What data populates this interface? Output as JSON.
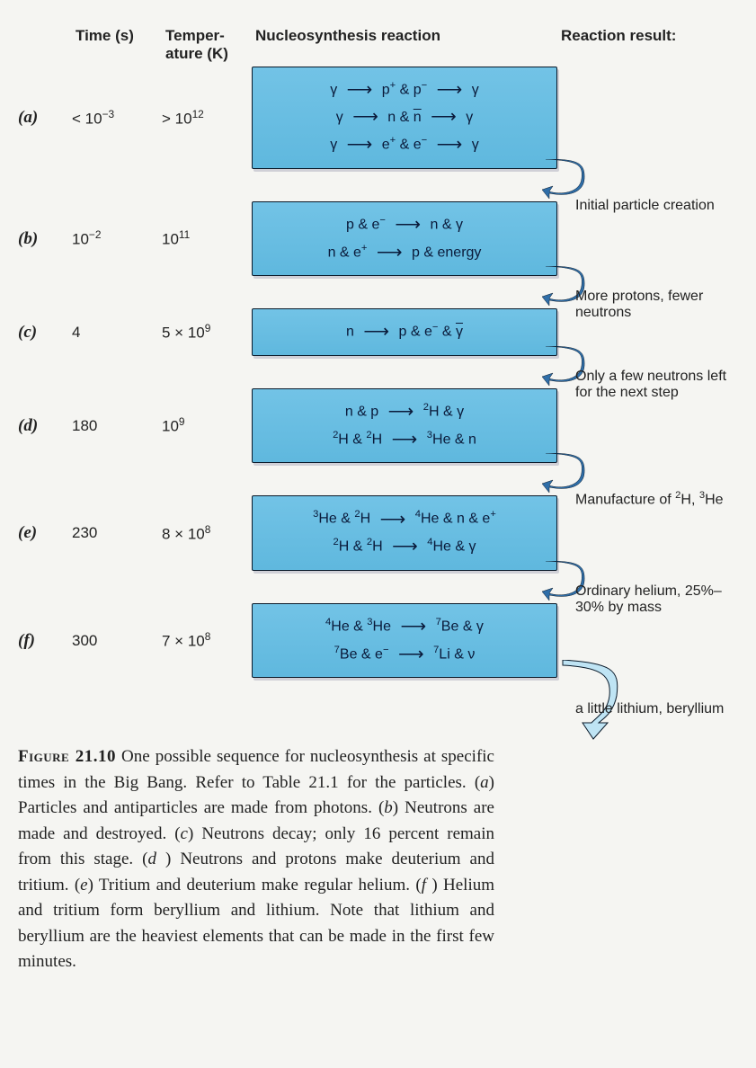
{
  "headers": {
    "time": "Time (s)",
    "temp": "Temper-\nature (K)",
    "reaction": "Nucleosynthesis reaction",
    "result": "Reaction result:"
  },
  "colors": {
    "box_bg_top": "#72c3e6",
    "box_bg_bottom": "#5fb8de",
    "box_border": "#0a1a2a",
    "text": "#222",
    "page_bg": "#f5f5f2",
    "connector_fill": "#2f6ea8"
  },
  "steps": [
    {
      "id": "a",
      "label": "(a)",
      "time_html": "< 10<sup>−3</sup>",
      "temp_html": "> 10<sup>12</sup>",
      "reactions": [
        "γ → p<sup>+</sup> & p<sup>−</sup> → γ",
        "γ → n & <span class='overbar'>n</span> → γ",
        "γ → e<sup>+</sup> & e<sup>−</sup> → γ"
      ],
      "result": "Initial particle creation"
    },
    {
      "id": "b",
      "label": "(b)",
      "time_html": "10<sup>−2</sup>",
      "temp_html": "10<sup>11</sup>",
      "reactions": [
        "p & e<sup>−</sup> → n & γ",
        "n & e<sup>+</sup> → p & energy"
      ],
      "result": "More protons, fewer neutrons"
    },
    {
      "id": "c",
      "label": "(c)",
      "time_html": "4",
      "temp_html": "5 × 10<sup>9</sup>",
      "reactions": [
        "n → p & e<sup>−</sup> & <span class='overbar'>γ</span>"
      ],
      "result": "Only a few neutrons left for the next step"
    },
    {
      "id": "d",
      "label": "(d)",
      "time_html": "180",
      "temp_html": "10<sup>9</sup>",
      "reactions": [
        "n & p → <sup>2</sup>H & γ",
        "<sup>2</sup>H & <sup>2</sup>H → <sup>3</sup>He & n"
      ],
      "result": "Manufacture of <sup>2</sup>H, <sup>3</sup>He"
    },
    {
      "id": "e",
      "label": "(e)",
      "time_html": "230",
      "temp_html": "8 × 10<sup>8</sup>",
      "reactions": [
        "<sup>3</sup>He & <sup>2</sup>H → <sup>4</sup>He & n & e<sup>+</sup>",
        "<sup>2</sup>H & <sup>2</sup>H → <sup>4</sup>He & γ"
      ],
      "result": "Ordinary helium, 25%–30% by mass"
    },
    {
      "id": "f",
      "label": "(f)",
      "time_html": "300",
      "temp_html": "7 × 10<sup>8</sup>",
      "reactions": [
        "<sup>4</sup>He & <sup>3</sup>He → <sup>7</sup>Be & γ",
        "<sup>7</sup>Be & e<sup>−</sup> → <sup>7</sup>Li & ν"
      ],
      "result": "a little lithium, beryllium",
      "final": true
    }
  ],
  "caption": {
    "label": "Figure 21.10",
    "text": "One possible sequence for nucleosynthesis at specific times in the Big Bang. Refer to Table 21.1 for the particles. (a) Particles and antiparticles are made from photons. (b) Neutrons are made and destroyed. (c) Neutrons decay; only 16 percent remain from this stage. (d ) Neutrons and protons make deuterium and tritium. (e) Tritium and deuterium make regular helium. (f ) Helium and tritium form beryllium and lithium. Note that lithium and beryllium are the heaviest elements that can be made in the first few minutes."
  }
}
